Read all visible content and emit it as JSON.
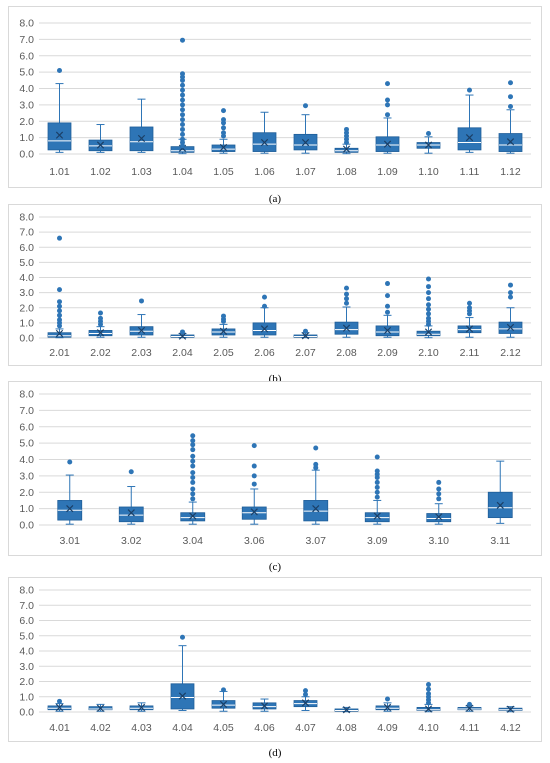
{
  "colors": {
    "box_fill": "#2E75B6",
    "box_stroke": "#1F5E99",
    "grid": "#D9D9D9",
    "axis_text": "#595959",
    "mean_marker": "#1B3F66"
  },
  "chart_data": [
    {
      "type": "box",
      "panel_label": "(a)",
      "ylim": [
        0,
        8
      ],
      "yticks": [
        "0.0",
        "1.0",
        "2.0",
        "3.0",
        "4.0",
        "5.0",
        "6.0",
        "7.0",
        "8.0"
      ],
      "grid": true,
      "categories": [
        "1.01",
        "1.02",
        "1.03",
        "1.04",
        "1.05",
        "1.06",
        "1.07",
        "1.08",
        "1.09",
        "1.10",
        "1.11",
        "1.12"
      ],
      "boxes": [
        {
          "min": 0.1,
          "q1": 0.25,
          "median": 0.8,
          "q3": 1.9,
          "max": 4.3,
          "mean": 1.15,
          "outliers": [
            5.1
          ]
        },
        {
          "min": 0.1,
          "q1": 0.2,
          "median": 0.5,
          "q3": 0.85,
          "max": 1.8,
          "mean": 0.55,
          "outliers": []
        },
        {
          "min": 0.1,
          "q1": 0.2,
          "median": 0.75,
          "q3": 1.65,
          "max": 3.35,
          "mean": 0.95,
          "outliers": []
        },
        {
          "min": 0.02,
          "q1": 0.1,
          "median": 0.2,
          "q3": 0.45,
          "max": 0.9,
          "mean": 0.35,
          "outliers": [
            0.5,
            0.7,
            0.9,
            1.2,
            1.5,
            1.8,
            2.1,
            2.4,
            2.7,
            3.0,
            3.3,
            3.6,
            3.9,
            4.2,
            4.5,
            4.7,
            4.9,
            6.95
          ]
        },
        {
          "min": 0.05,
          "q1": 0.15,
          "median": 0.3,
          "q3": 0.55,
          "max": 0.9,
          "mean": 0.4,
          "outliers": [
            1.1,
            1.3,
            1.6,
            1.9,
            2.1,
            2.65
          ]
        },
        {
          "min": 0.05,
          "q1": 0.15,
          "median": 0.6,
          "q3": 1.3,
          "max": 2.55,
          "mean": 0.7,
          "outliers": []
        },
        {
          "min": 0.05,
          "q1": 0.25,
          "median": 0.55,
          "q3": 1.2,
          "max": 2.4,
          "mean": 0.7,
          "outliers": [
            2.95
          ]
        },
        {
          "min": 0.02,
          "q1": 0.1,
          "median": 0.2,
          "q3": 0.35,
          "max": 0.6,
          "mean": 0.3,
          "outliers": [
            0.7,
            0.9,
            1.1,
            1.3,
            1.5
          ]
        },
        {
          "min": 0.05,
          "q1": 0.15,
          "median": 0.55,
          "q3": 1.05,
          "max": 2.2,
          "mean": 0.6,
          "outliers": [
            2.4,
            3.0,
            3.3,
            4.3
          ]
        },
        {
          "min": 0.05,
          "q1": 0.35,
          "median": 0.55,
          "q3": 0.7,
          "max": 1.05,
          "mean": 0.55,
          "outliers": [
            1.25
          ]
        },
        {
          "min": 0.1,
          "q1": 0.25,
          "median": 0.7,
          "q3": 1.6,
          "max": 3.6,
          "mean": 1.0,
          "outliers": [
            3.9
          ]
        },
        {
          "min": 0.05,
          "q1": 0.15,
          "median": 0.55,
          "q3": 1.25,
          "max": 2.7,
          "mean": 0.75,
          "outliers": [
            2.9,
            3.5,
            4.35
          ]
        }
      ]
    },
    {
      "type": "box",
      "panel_label": "(b)",
      "ylim": [
        0,
        8
      ],
      "yticks": [
        "0.0",
        "1.0",
        "2.0",
        "3.0",
        "4.0",
        "5.0",
        "6.0",
        "7.0",
        "8.0"
      ],
      "grid": true,
      "categories": [
        "2.01",
        "2.02",
        "2.03",
        "2.04",
        "2.05",
        "2.06",
        "2.07",
        "2.08",
        "2.09",
        "2.10",
        "2.11",
        "2.12"
      ],
      "boxes": [
        {
          "min": 0.02,
          "q1": 0.05,
          "median": 0.15,
          "q3": 0.35,
          "max": 0.6,
          "mean": 0.3,
          "outliers": [
            0.8,
            1.0,
            1.2,
            1.5,
            1.8,
            2.1,
            2.4,
            3.2,
            6.6
          ]
        },
        {
          "min": 0.05,
          "q1": 0.15,
          "median": 0.3,
          "q3": 0.5,
          "max": 0.75,
          "mean": 0.35,
          "outliers": [
            0.9,
            1.1,
            1.3,
            1.65
          ]
        },
        {
          "min": 0.05,
          "q1": 0.2,
          "median": 0.45,
          "q3": 0.75,
          "max": 1.55,
          "mean": 0.5,
          "outliers": [
            2.45
          ]
        },
        {
          "min": 0.02,
          "q1": 0.05,
          "median": 0.1,
          "q3": 0.2,
          "max": 0.3,
          "mean": 0.12,
          "outliers": [
            0.4
          ]
        },
        {
          "min": 0.05,
          "q1": 0.2,
          "median": 0.4,
          "q3": 0.6,
          "max": 0.9,
          "mean": 0.45,
          "outliers": [
            1.1,
            1.25,
            1.45
          ]
        },
        {
          "min": 0.05,
          "q1": 0.2,
          "median": 0.5,
          "q3": 1.0,
          "max": 2.0,
          "mean": 0.6,
          "outliers": [
            2.1,
            2.7
          ]
        },
        {
          "min": 0.02,
          "q1": 0.05,
          "median": 0.1,
          "q3": 0.2,
          "max": 0.35,
          "mean": 0.15,
          "outliers": [
            0.45
          ]
        },
        {
          "min": 0.05,
          "q1": 0.25,
          "median": 0.55,
          "q3": 1.05,
          "max": 2.05,
          "mean": 0.65,
          "outliers": [
            2.3,
            2.6,
            2.9,
            3.3
          ]
        },
        {
          "min": 0.05,
          "q1": 0.15,
          "median": 0.4,
          "q3": 0.8,
          "max": 1.5,
          "mean": 0.5,
          "outliers": [
            1.7,
            2.1,
            2.8,
            3.6
          ]
        },
        {
          "min": 0.02,
          "q1": 0.15,
          "median": 0.25,
          "q3": 0.45,
          "max": 0.8,
          "mean": 0.4,
          "outliers": [
            0.9,
            1.1,
            1.3,
            1.6,
            1.9,
            2.2,
            2.6,
            3.0,
            3.4,
            3.9
          ]
        },
        {
          "min": 0.05,
          "q1": 0.35,
          "median": 0.55,
          "q3": 0.8,
          "max": 1.35,
          "mean": 0.6,
          "outliers": [
            1.6,
            1.8,
            2.0,
            2.3
          ]
        },
        {
          "min": 0.05,
          "q1": 0.3,
          "median": 0.6,
          "q3": 1.05,
          "max": 2.0,
          "mean": 0.7,
          "outliers": [
            2.7,
            3.0,
            3.5
          ]
        }
      ]
    },
    {
      "type": "box",
      "panel_label": "(c)",
      "ylim": [
        0,
        8
      ],
      "yticks": [
        "0.0",
        "1.0",
        "2.0",
        "3.0",
        "4.0",
        "5.0",
        "6.0",
        "7.0",
        "8.0"
      ],
      "grid": true,
      "categories": [
        "3.01",
        "3.02",
        "3.04",
        "3.06",
        "3.07",
        "3.09",
        "3.10",
        "3.11"
      ],
      "boxes": [
        {
          "min": 0.05,
          "q1": 0.3,
          "median": 0.9,
          "q3": 1.5,
          "max": 3.05,
          "mean": 1.0,
          "outliers": [
            3.85
          ]
        },
        {
          "min": 0.05,
          "q1": 0.2,
          "median": 0.6,
          "q3": 1.1,
          "max": 2.35,
          "mean": 0.75,
          "outliers": [
            3.25
          ]
        },
        {
          "min": 0.05,
          "q1": 0.25,
          "median": 0.45,
          "q3": 0.75,
          "max": 1.4,
          "mean": 0.55,
          "outliers": [
            1.6,
            1.9,
            2.2,
            2.6,
            2.9,
            3.2,
            3.6,
            3.9,
            4.2,
            4.6,
            4.9,
            5.15,
            5.45
          ]
        },
        {
          "min": 0.05,
          "q1": 0.35,
          "median": 0.75,
          "q3": 1.1,
          "max": 2.2,
          "mean": 0.8,
          "outliers": [
            2.5,
            3.0,
            3.6,
            4.85
          ]
        },
        {
          "min": 0.05,
          "q1": 0.25,
          "median": 0.85,
          "q3": 1.5,
          "max": 3.35,
          "mean": 1.0,
          "outliers": [
            3.5,
            3.7,
            4.7
          ]
        },
        {
          "min": 0.05,
          "q1": 0.2,
          "median": 0.45,
          "q3": 0.75,
          "max": 1.5,
          "mean": 0.55,
          "outliers": [
            1.7,
            2.0,
            2.3,
            2.6,
            2.9,
            3.1,
            3.3,
            4.15
          ]
        },
        {
          "min": 0.05,
          "q1": 0.2,
          "median": 0.4,
          "q3": 0.7,
          "max": 1.3,
          "mean": 0.5,
          "outliers": [
            1.6,
            1.9,
            2.2,
            2.6
          ]
        },
        {
          "min": 0.1,
          "q1": 0.45,
          "median": 1.05,
          "q3": 2.0,
          "max": 3.9,
          "mean": 1.2,
          "outliers": []
        }
      ]
    },
    {
      "type": "box",
      "panel_label": "(d)",
      "ylim": [
        0,
        8
      ],
      "yticks": [
        "0.0",
        "1.0",
        "2.0",
        "3.0",
        "4.0",
        "5.0",
        "6.0",
        "7.0",
        "8.0"
      ],
      "grid": true,
      "categories": [
        "4.01",
        "4.02",
        "4.03",
        "4.04",
        "4.05",
        "4.06",
        "4.07",
        "4.08",
        "4.09",
        "4.10",
        "4.11",
        "4.12"
      ],
      "boxes": [
        {
          "min": 0.05,
          "q1": 0.15,
          "median": 0.25,
          "q3": 0.4,
          "max": 0.55,
          "mean": 0.3,
          "outliers": [
            0.7
          ]
        },
        {
          "min": 0.05,
          "q1": 0.15,
          "median": 0.2,
          "q3": 0.35,
          "max": 0.5,
          "mean": 0.25,
          "outliers": []
        },
        {
          "min": 0.05,
          "q1": 0.15,
          "median": 0.25,
          "q3": 0.4,
          "max": 0.6,
          "mean": 0.3,
          "outliers": []
        },
        {
          "min": 0.1,
          "q1": 0.2,
          "median": 0.95,
          "q3": 1.85,
          "max": 4.35,
          "mean": 1.05,
          "outliers": [
            4.9
          ]
        },
        {
          "min": 0.05,
          "q1": 0.25,
          "median": 0.45,
          "q3": 0.75,
          "max": 1.35,
          "mean": 0.5,
          "outliers": [
            1.45
          ]
        },
        {
          "min": 0.05,
          "q1": 0.2,
          "median": 0.35,
          "q3": 0.6,
          "max": 0.85,
          "mean": 0.4,
          "outliers": []
        },
        {
          "min": 0.1,
          "q1": 0.35,
          "median": 0.55,
          "q3": 0.75,
          "max": 1.0,
          "mean": 0.6,
          "outliers": [
            1.15,
            1.4
          ]
        },
        {
          "min": 0.02,
          "q1": 0.05,
          "median": 0.1,
          "q3": 0.2,
          "max": 0.3,
          "mean": 0.15,
          "outliers": []
        },
        {
          "min": 0.05,
          "q1": 0.15,
          "median": 0.25,
          "q3": 0.4,
          "max": 0.6,
          "mean": 0.3,
          "outliers": [
            0.85
          ]
        },
        {
          "min": 0.02,
          "q1": 0.1,
          "median": 0.15,
          "q3": 0.3,
          "max": 0.5,
          "mean": 0.2,
          "outliers": [
            0.6,
            0.8,
            1.0,
            1.2,
            1.5,
            1.8
          ]
        },
        {
          "min": 0.05,
          "q1": 0.15,
          "median": 0.2,
          "q3": 0.3,
          "max": 0.4,
          "mean": 0.25,
          "outliers": [
            0.5
          ]
        },
        {
          "min": 0.02,
          "q1": 0.1,
          "median": 0.15,
          "q3": 0.25,
          "max": 0.35,
          "mean": 0.18,
          "outliers": []
        }
      ]
    }
  ]
}
